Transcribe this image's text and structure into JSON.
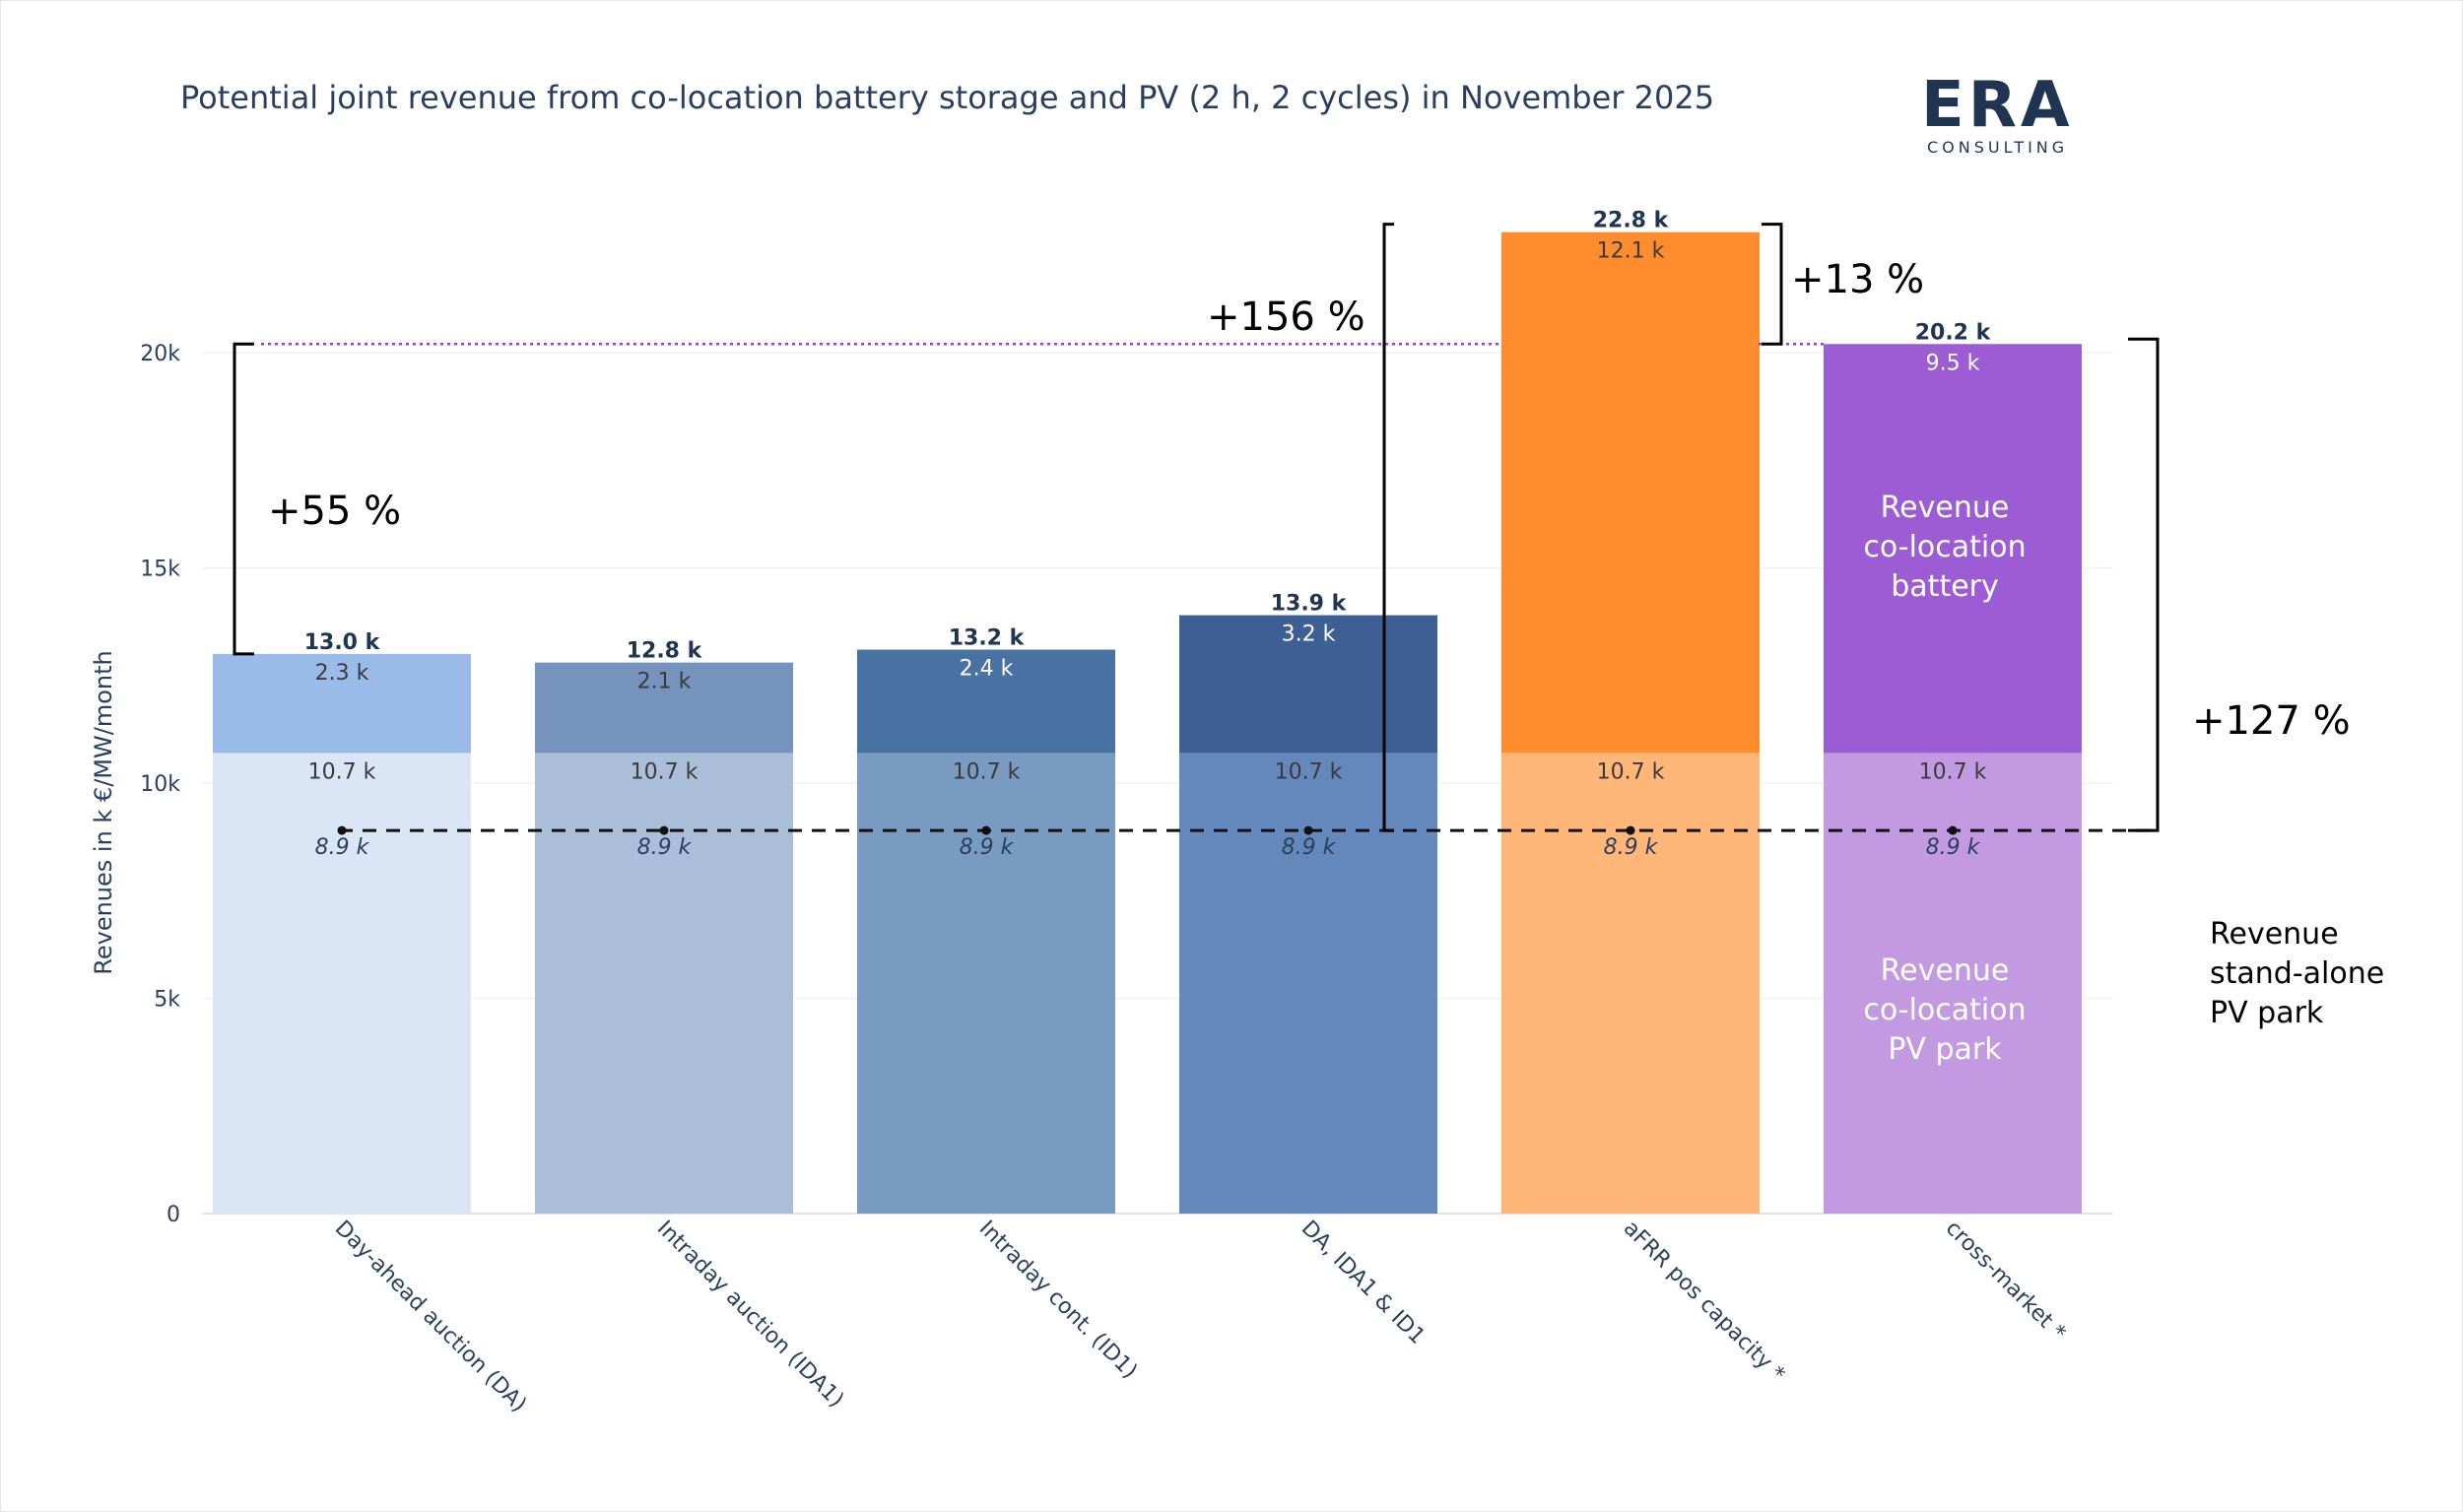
{
  "title": "Potential joint revenue from co-location battery storage and PV (2 h, 2 cycles) in November 2025",
  "logo": {
    "word": "ERA",
    "sub": "CONSULTING"
  },
  "chart_data": {
    "type": "bar",
    "stacked": true,
    "title": "Potential joint revenue from co-location battery storage and PV (2 h, 2 cycles) in November 2025",
    "ylabel": "Revenues in k €/MW/month",
    "ylim": [
      0,
      23000
    ],
    "yticks": [
      {
        "value": 0,
        "label": "0"
      },
      {
        "value": 5000,
        "label": "5k"
      },
      {
        "value": 10000,
        "label": "10k"
      },
      {
        "value": 15000,
        "label": "15k"
      },
      {
        "value": 20000,
        "label": "20k"
      }
    ],
    "grid": true,
    "categories": [
      "Day-ahead auction (DA)",
      "Intraday auction (IDA1)",
      "Intraday cont. (ID1)",
      "DA, IDA1 & ID1",
      "aFRR pos capacity *",
      "cross-market *"
    ],
    "series": [
      {
        "values": [
          10700,
          10700,
          10700,
          10700,
          10700,
          10700
        ],
        "labels": [
          "10.7 k",
          "10.7 k",
          "10.7 k",
          "10.7 k",
          "10.7 k",
          "10.7 k"
        ],
        "colors": [
          "#dae6f6",
          "#abbed9",
          "#799bc2",
          "#6488bc",
          "#ffb679",
          "#c399e2"
        ]
      },
      {
        "values": [
          2300,
          2100,
          2400,
          3200,
          12100,
          9500
        ],
        "labels": [
          "2.3 k",
          "2.1 k",
          "2.4 k",
          "3.2 k",
          "12.1 k",
          "9.5 k"
        ],
        "colors": [
          "#9abbe7",
          "#7593bd",
          "#4872a2",
          "#3e5f93",
          "#ff8c2d",
          "#9c5cd4"
        ]
      }
    ],
    "totals": [
      13000,
      12800,
      13200,
      13900,
      22800,
      20200
    ],
    "total_labels": [
      "13.0 k",
      "12.8 k",
      "13.2 k",
      "13.9 k",
      "22.8 k",
      "20.2 k"
    ],
    "reference_line": {
      "value": 8900,
      "labels": [
        "8.9 k",
        "8.9 k",
        "8.9 k",
        "8.9 k",
        "8.9 k",
        "8.9 k"
      ]
    },
    "highlight_line": {
      "value": 20200,
      "color": "#9b3bd1"
    },
    "annotations": {
      "pct_55": "+55 %",
      "pct_156": "+156 %",
      "pct_13": "+13 %",
      "pct_127": "+127 %",
      "battery_label": [
        "Revenue",
        "co-location",
        "battery"
      ],
      "pv_label": [
        "Revenue",
        "co-location",
        "PV park"
      ],
      "standalone_label": [
        "Revenue",
        "stand-alone",
        "PV park"
      ]
    }
  }
}
